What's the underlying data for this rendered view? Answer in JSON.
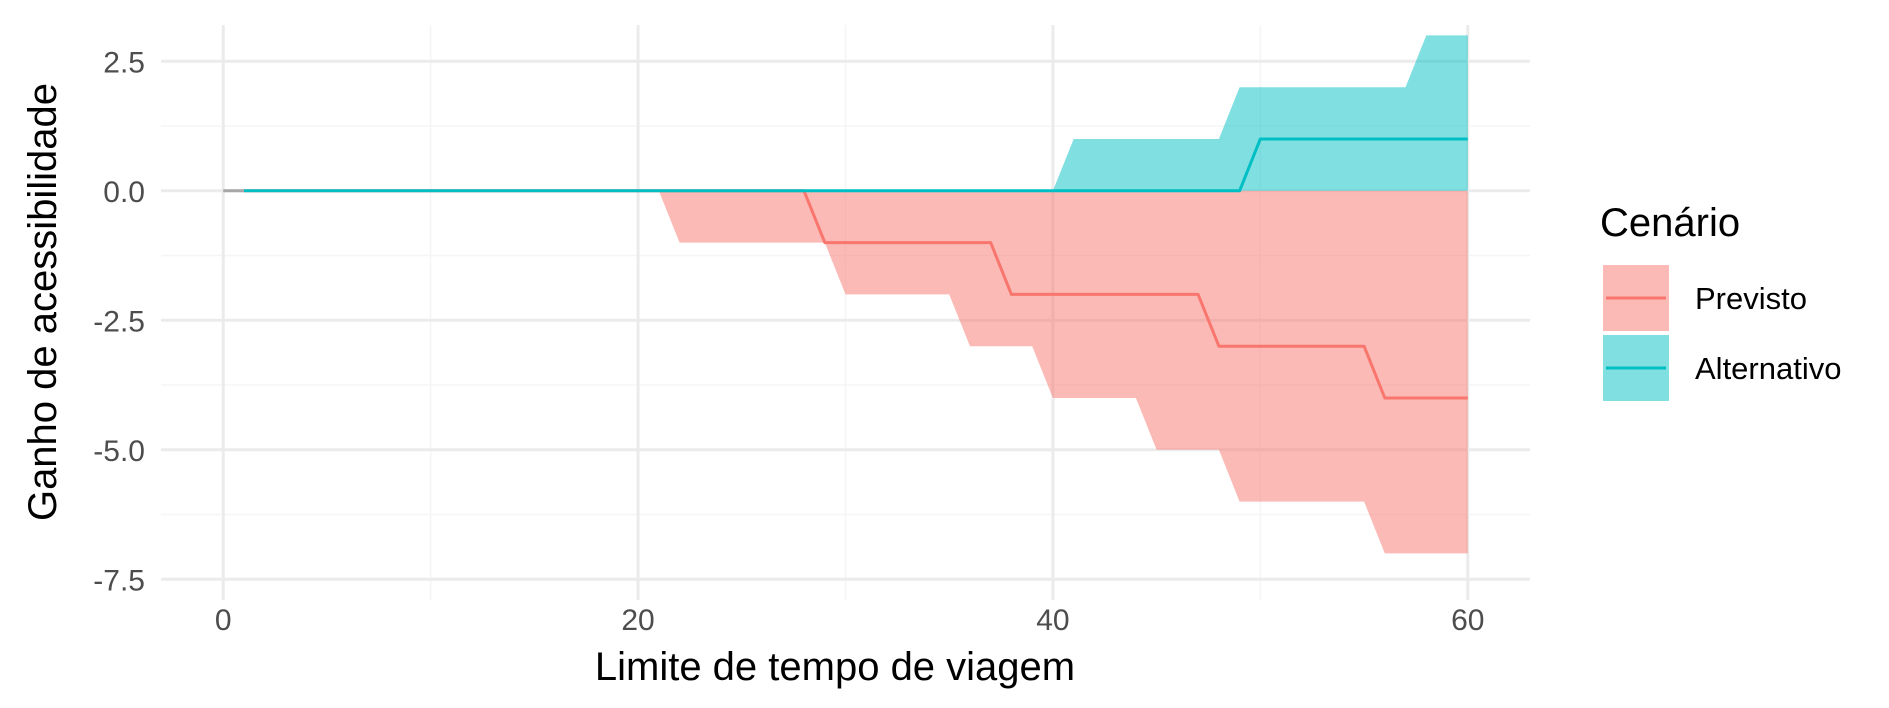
{
  "chart_data": {
    "type": "area",
    "title": "",
    "xlabel": "Limite de tempo de viagem",
    "ylabel": "Ganho de acessibilidade",
    "xlim": [
      -3,
      63
    ],
    "ylim": [
      -7.9,
      3.2
    ],
    "x_ticks": [
      0,
      20,
      40,
      60
    ],
    "x_tick_labels": [
      "0",
      "20",
      "40",
      "60"
    ],
    "y_ticks": [
      2.5,
      0,
      -2.5,
      -5,
      -7.5
    ],
    "y_tick_labels": [
      "2.5",
      "0.0",
      "-2.5",
      "-5.0",
      "-7.5"
    ],
    "grid": true,
    "legend": {
      "title": "Cenário",
      "position": "right",
      "entries": [
        "Previsto",
        "Alternativo"
      ]
    },
    "series": [
      {
        "name": "Previsto",
        "color": "#F8766D",
        "line": [
          [
            1,
            0
          ],
          [
            28,
            0
          ],
          [
            29,
            -1
          ],
          [
            37,
            -1
          ],
          [
            38,
            -2
          ],
          [
            47,
            -2
          ],
          [
            48,
            -3
          ],
          [
            55,
            -3
          ],
          [
            56,
            -4
          ],
          [
            60,
            -4
          ]
        ],
        "ribbon_upper": [
          [
            1,
            0
          ],
          [
            60,
            0
          ]
        ],
        "ribbon_lower": [
          [
            1,
            0
          ],
          [
            21,
            0
          ],
          [
            22,
            -1
          ],
          [
            29,
            -1
          ],
          [
            30,
            -2
          ],
          [
            35,
            -2
          ],
          [
            36,
            -3
          ],
          [
            39,
            -3
          ],
          [
            40,
            -4
          ],
          [
            44,
            -4
          ],
          [
            45,
            -5
          ],
          [
            48,
            -5
          ],
          [
            49,
            -6
          ],
          [
            55,
            -6
          ],
          [
            56,
            -7
          ],
          [
            60,
            -7
          ]
        ]
      },
      {
        "name": "Alternativo",
        "color": "#00BFC4",
        "line": [
          [
            1,
            0
          ],
          [
            49,
            0
          ],
          [
            50,
            1
          ],
          [
            60,
            1
          ]
        ],
        "ribbon_upper": [
          [
            1,
            0
          ],
          [
            40,
            0
          ],
          [
            41,
            1
          ],
          [
            48,
            1
          ],
          [
            49,
            2
          ],
          [
            57,
            2
          ],
          [
            58,
            3
          ],
          [
            60,
            3
          ]
        ],
        "ribbon_lower": [
          [
            1,
            0
          ],
          [
            60,
            0
          ]
        ]
      }
    ],
    "reference_line": {
      "color": "#A6A6A6",
      "points": [
        [
          0,
          0
        ],
        [
          1,
          0
        ]
      ]
    }
  }
}
